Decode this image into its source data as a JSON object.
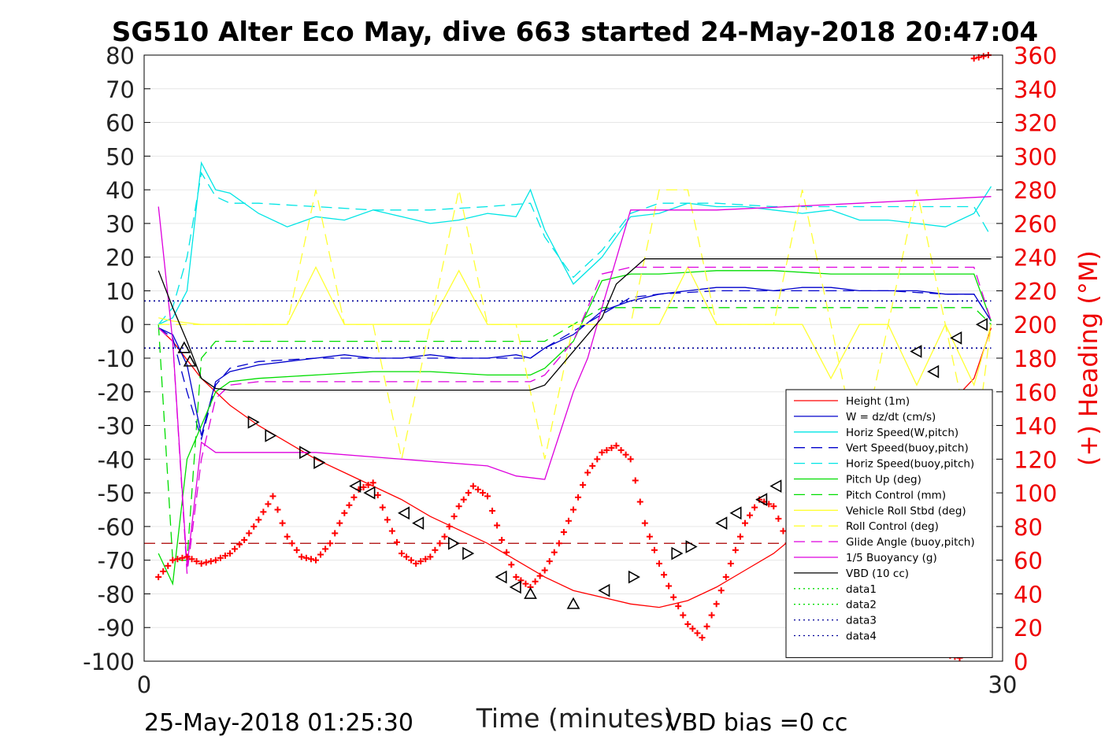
{
  "chart_data": {
    "type": "line",
    "title": "SG510 Alter Eco May, dive 663 started 24-May-2018 20:47:04",
    "xlabel": "Time (minutes)",
    "ylabel_right": "(+) Heading (°M)",
    "xlim": [
      0,
      30
    ],
    "ylim": [
      -100,
      80
    ],
    "ylim_right": [
      0,
      360
    ],
    "x_ticks": [
      0,
      30
    ],
    "y_ticks": [
      80,
      70,
      60,
      50,
      40,
      30,
      20,
      10,
      0,
      -10,
      -20,
      -30,
      -40,
      -50,
      -60,
      -70,
      -80,
      -90,
      -100
    ],
    "y_right_ticks": [
      360,
      340,
      320,
      300,
      280,
      260,
      240,
      220,
      200,
      180,
      160,
      140,
      120,
      100,
      80,
      60,
      40,
      20,
      0
    ],
    "grid": "horizontal",
    "legend_position": "bottom-right",
    "footer_left": "25-May-2018 01:25:30",
    "footer_right": "VBD bias =0 cc",
    "colors": {
      "height": "#ff0000",
      "w": "#0000cc",
      "horiz": "#00e5e5",
      "pitch": "#00dd00",
      "roll": "#ffff33",
      "glide": "#dd00dd",
      "buoy": "#dd00dd",
      "vbd": "#000000",
      "heading": "#ff0000",
      "data4": "#000099"
    },
    "series": [
      {
        "name": "Height (1m)",
        "color": "#ff0000",
        "style": "solid",
        "x": [
          0.5,
          1,
          2,
          3,
          4,
          5,
          6,
          7,
          8,
          9,
          10,
          11,
          12,
          13,
          14,
          15,
          16,
          17,
          18,
          19,
          20,
          21,
          22,
          23,
          24,
          25,
          26,
          27,
          28,
          29,
          29.6
        ],
        "y": [
          -1,
          -5,
          -16,
          -24,
          -30,
          -35,
          -40,
          -44,
          -48,
          -52,
          -57,
          -61,
          -65,
          -70,
          -75,
          -79,
          -81,
          -83,
          -84,
          -82,
          -78,
          -73,
          -68,
          -61,
          -54,
          -47,
          -40,
          -33,
          -25,
          -16,
          -1
        ]
      },
      {
        "name": "W = dz/dt (cm/s)",
        "color": "#0000cc",
        "style": "solid",
        "x": [
          0.5,
          1,
          1.5,
          2,
          2.5,
          3,
          4,
          5,
          6,
          7,
          8,
          9,
          10,
          11,
          12,
          13,
          13.5,
          14,
          15,
          16,
          17,
          18,
          19,
          20,
          21,
          22,
          23,
          24,
          25,
          26,
          27,
          28,
          29,
          29.6
        ],
        "y": [
          -1,
          -3,
          -12,
          -33,
          -17,
          -14,
          -12,
          -11,
          -10,
          -9,
          -10,
          -10,
          -9,
          -10,
          -10,
          -9,
          -10,
          -7,
          -3,
          4,
          7,
          9,
          10,
          11,
          11,
          10,
          11,
          11,
          10,
          10,
          10,
          9,
          9,
          1
        ]
      },
      {
        "name": "Horiz Speed(W,pitch)",
        "color": "#00e5e5",
        "style": "solid",
        "x": [
          0.5,
          1,
          1.5,
          2,
          2.5,
          3,
          4,
          5,
          6,
          7,
          8,
          9,
          10,
          11,
          12,
          13,
          13.5,
          14,
          15,
          16,
          17,
          18,
          19,
          20,
          21,
          22,
          23,
          24,
          25,
          26,
          27,
          28,
          29,
          29.6
        ],
        "y": [
          0,
          2,
          10,
          48,
          40,
          39,
          33,
          29,
          32,
          31,
          34,
          32,
          30,
          31,
          33,
          32,
          40,
          28,
          12,
          20,
          32,
          33,
          36,
          35,
          35,
          34,
          33,
          34,
          31,
          31,
          30,
          29,
          33,
          41
        ]
      },
      {
        "name": "Vert Speed(buoy,pitch)",
        "color": "#0000cc",
        "style": "dashed",
        "x": [
          0.5,
          1,
          1.5,
          2,
          2.5,
          3,
          4,
          6,
          8,
          10,
          12,
          13.5,
          14,
          15,
          16,
          17,
          18,
          20,
          22,
          24,
          26,
          28,
          29,
          29.6
        ],
        "y": [
          -1,
          -4,
          -20,
          -34,
          -18,
          -13,
          -11,
          -10,
          -10,
          -10,
          -10,
          -10,
          -7,
          -2,
          3,
          8,
          9,
          10,
          10,
          10,
          10,
          9,
          9,
          1
        ]
      },
      {
        "name": "Horiz Speed(buoy,pitch)",
        "color": "#00e5e5",
        "style": "dashed",
        "x": [
          0.5,
          1,
          1.5,
          2,
          2.5,
          3,
          4,
          6,
          8,
          10,
          12,
          13.5,
          14,
          15,
          16,
          17,
          18,
          20,
          22,
          24,
          26,
          28,
          29,
          29.6
        ],
        "y": [
          0,
          5,
          20,
          45,
          38,
          36,
          36,
          35,
          34,
          34,
          35,
          36,
          26,
          14,
          22,
          33,
          36,
          36,
          35,
          35,
          35,
          35,
          35,
          26
        ]
      },
      {
        "name": "Pitch Up (deg)",
        "color": "#00dd00",
        "style": "solid",
        "x": [
          0.5,
          1,
          1.5,
          2,
          2.5,
          3,
          4,
          6,
          8,
          10,
          12,
          13.5,
          14,
          15,
          16,
          17,
          18,
          20,
          22,
          24,
          26,
          28,
          29,
          29.6
        ],
        "y": [
          -68,
          -77,
          -40,
          -30,
          -20,
          -17,
          -16,
          -15,
          -14,
          -14,
          -15,
          -15,
          -13,
          -5,
          13,
          15,
          15,
          16,
          16,
          15,
          15,
          15,
          15,
          1
        ]
      },
      {
        "name": "Pitch Control (mm)",
        "color": "#00dd00",
        "style": "dashed",
        "x": [
          0.5,
          1,
          1.5,
          2,
          2.5,
          3,
          14,
          15,
          16,
          29,
          29.6
        ],
        "y": [
          0,
          -70,
          -70,
          -10,
          -5,
          -5,
          -5,
          0,
          5,
          5,
          0
        ]
      },
      {
        "name": "Vehicle Roll Stbd (deg)",
        "color": "#ffff33",
        "style": "solid",
        "x": [
          0.5,
          1,
          2,
          3,
          4,
          5,
          6,
          7,
          8,
          9,
          10,
          11,
          12,
          13,
          14,
          15,
          16,
          17,
          18,
          19,
          20,
          21,
          22,
          23,
          24,
          25,
          26,
          27,
          28,
          29,
          29.6
        ],
        "y": [
          2,
          1,
          0,
          0,
          0,
          0,
          17,
          0,
          0,
          0,
          0,
          16,
          0,
          0,
          0,
          0,
          0,
          0,
          0,
          17,
          0,
          0,
          0,
          0,
          -16,
          0,
          0,
          -18,
          0,
          -18,
          0
        ]
      },
      {
        "name": "Roll Control (deg)",
        "color": "#ffff33",
        "style": "dashed",
        "x": [
          0.5,
          1,
          2,
          3,
          4,
          5,
          6,
          7,
          8,
          9,
          10,
          11,
          12,
          13,
          14,
          15,
          16,
          17,
          18,
          19,
          20,
          21,
          22,
          23,
          24,
          25,
          26,
          27,
          28,
          29,
          29.6
        ],
        "y": [
          0,
          0,
          0,
          0,
          0,
          0,
          40,
          0,
          0,
          -40,
          0,
          40,
          0,
          0,
          -40,
          0,
          0,
          0,
          40,
          40,
          0,
          0,
          0,
          40,
          0,
          -40,
          0,
          40,
          0,
          -40,
          0
        ]
      },
      {
        "name": "Glide Angle (buoy,pitch)",
        "color": "#dd00dd",
        "style": "dashed",
        "x": [
          0.5,
          1,
          1.5,
          2,
          2.5,
          3,
          4,
          6,
          8,
          10,
          12,
          13.5,
          14,
          15,
          16,
          17,
          18,
          20,
          22,
          24,
          26,
          28,
          29,
          29.6
        ],
        "y": [
          -1,
          -5,
          -74,
          -40,
          -22,
          -18,
          -17,
          -17,
          -17,
          -17,
          -17,
          -17,
          -15,
          -5,
          15,
          17,
          17,
          17,
          17,
          17,
          17,
          17,
          17,
          1
        ]
      },
      {
        "name": "1/5 Buoyancy (g)",
        "color": "#dd00dd",
        "style": "solid",
        "x": [
          0.5,
          1,
          1.5,
          2,
          2.5,
          3,
          6,
          9,
          12,
          13,
          14,
          15,
          15.5,
          16,
          17,
          20,
          25,
          29.6
        ],
        "y": [
          35,
          -5,
          -72,
          -35,
          -38,
          -38,
          -38,
          -40,
          -42,
          -45,
          -46,
          -20,
          -10,
          5,
          34,
          34,
          36,
          38
        ]
      },
      {
        "name": "VBD (10 cc)",
        "color": "#000000",
        "style": "solid",
        "x": [
          0.5,
          1,
          1.5,
          2,
          2.5,
          3,
          13.5,
          14,
          15,
          16,
          16.5,
          17.5,
          29.6
        ],
        "y": [
          16,
          5,
          -5,
          -16,
          -19,
          -19.5,
          -19.5,
          -18,
          -8,
          2,
          12,
          19.5,
          19.5
        ]
      },
      {
        "name": "data1",
        "color": "#00dd00",
        "style": "dotted",
        "x": [],
        "y": []
      },
      {
        "name": "data2",
        "color": "#00dd00",
        "style": "dotted",
        "x": [],
        "y": []
      },
      {
        "name": "data3",
        "color": "#000099",
        "style": "dotted",
        "x": [
          0,
          29.6
        ],
        "y": [
          7,
          7
        ]
      },
      {
        "name": "data4",
        "color": "#000099",
        "style": "dotted",
        "x": [
          0,
          29.6
        ],
        "y": [
          -7,
          -7
        ]
      }
    ],
    "extra_lines": [
      {
        "kind": "mean-heading",
        "color": "#aa0000",
        "style": "dashed",
        "x": [
          0,
          29.6
        ],
        "y": [
          -65,
          -65
        ]
      }
    ],
    "heading": {
      "axis": "right",
      "x": [
        0.5,
        1,
        1.5,
        2,
        2.5,
        3,
        3.5,
        4,
        4.5,
        5,
        5.5,
        6,
        6.5,
        7,
        7.5,
        8,
        8.5,
        9,
        9.5,
        10,
        10.5,
        11,
        11.5,
        12,
        12.5,
        13,
        13.5,
        14,
        14.5,
        15,
        15.5,
        16,
        16.5,
        17,
        17.5,
        18,
        18.5,
        19,
        19.5,
        20,
        20.5,
        21,
        21.5,
        22,
        22.5,
        23,
        23.5,
        24,
        24.5,
        25,
        25.5,
        26,
        26.5,
        27,
        27.5,
        28,
        28.5,
        29,
        29.5
      ],
      "y": [
        50,
        60,
        62,
        58,
        60,
        64,
        72,
        84,
        98,
        74,
        62,
        60,
        70,
        88,
        102,
        106,
        84,
        64,
        58,
        62,
        74,
        92,
        104,
        98,
        72,
        50,
        44,
        54,
        70,
        90,
        112,
        124,
        128,
        120,
        82,
        58,
        38,
        22,
        14,
        34,
        58,
        82,
        96,
        92,
        70,
        54,
        44,
        52,
        74,
        92,
        88,
        62,
        38,
        24,
        10,
        4,
        2,
        358,
        360
      ],
      "wrap_low": [
        [
          25.0,
          4
        ],
        [
          25.5,
          2
        ]
      ]
    },
    "markers": {
      "points": [
        {
          "x": 1.4,
          "y": -7,
          "kind": "up"
        },
        {
          "x": 1.6,
          "y": -11,
          "kind": "up"
        },
        {
          "x": 3.8,
          "y": -29,
          "kind": "right"
        },
        {
          "x": 4.4,
          "y": -33,
          "kind": "right"
        },
        {
          "x": 5.6,
          "y": -38,
          "kind": "right"
        },
        {
          "x": 6.1,
          "y": -41,
          "kind": "right"
        },
        {
          "x": 7.4,
          "y": -48,
          "kind": "left"
        },
        {
          "x": 7.9,
          "y": -50,
          "kind": "left"
        },
        {
          "x": 9.1,
          "y": -56,
          "kind": "left"
        },
        {
          "x": 9.6,
          "y": -59,
          "kind": "left"
        },
        {
          "x": 10.8,
          "y": -65,
          "kind": "right"
        },
        {
          "x": 11.3,
          "y": -68,
          "kind": "right"
        },
        {
          "x": 12.5,
          "y": -75,
          "kind": "left"
        },
        {
          "x": 13.0,
          "y": -78,
          "kind": "left"
        },
        {
          "x": 13.5,
          "y": -80,
          "kind": "up"
        },
        {
          "x": 15.0,
          "y": -83,
          "kind": "up"
        },
        {
          "x": 16.1,
          "y": -79,
          "kind": "left"
        },
        {
          "x": 17.1,
          "y": -75,
          "kind": "right"
        },
        {
          "x": 18.6,
          "y": -68,
          "kind": "right"
        },
        {
          "x": 19.1,
          "y": -66,
          "kind": "right"
        },
        {
          "x": 20.2,
          "y": -59,
          "kind": "left"
        },
        {
          "x": 20.7,
          "y": -56,
          "kind": "left"
        },
        {
          "x": 21.6,
          "y": -52,
          "kind": "left"
        },
        {
          "x": 22.1,
          "y": -48,
          "kind": "left"
        },
        {
          "x": 23.3,
          "y": -42,
          "kind": "left"
        },
        {
          "x": 23.8,
          "y": -39,
          "kind": "left"
        },
        {
          "x": 25.1,
          "y": -33,
          "kind": "left"
        },
        {
          "x": 25.6,
          "y": -30,
          "kind": "left"
        },
        {
          "x": 27.0,
          "y": -8,
          "kind": "left"
        },
        {
          "x": 27.6,
          "y": -14,
          "kind": "left"
        },
        {
          "x": 28.4,
          "y": -4,
          "kind": "left"
        },
        {
          "x": 29.3,
          "y": 0,
          "kind": "left"
        }
      ]
    }
  }
}
